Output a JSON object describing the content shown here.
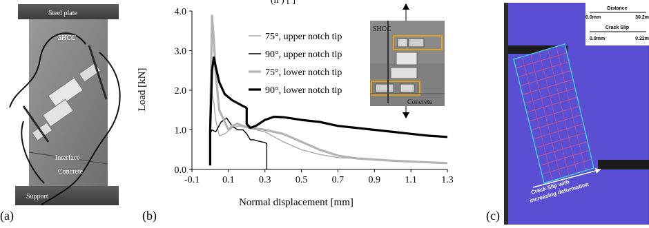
{
  "figure": {
    "labels": {
      "a": "(a)",
      "b": "(b)",
      "c": "(c)"
    }
  },
  "photo_a": {
    "labels": {
      "steel_plate": "Steel plate",
      "shcc": "SHCC",
      "interface": "Interface",
      "concrete": "Concrete",
      "support": "Support"
    }
  },
  "inset_b": {
    "labels": {
      "shcc": "SHCC",
      "concrete": "Concrete"
    }
  },
  "photo_c": {
    "scale": {
      "distance_title": "Distance",
      "distance_min": "0.0mm",
      "distance_max": "30.2m",
      "slip_title": "Crack Slip",
      "slip_min": "0.0mm",
      "slip_max": "0.22m"
    },
    "annotation": "Crack Slip with increasing deformation",
    "colors": {
      "background": "#5a4fd2",
      "crack_lines": "#e0507a",
      "crack_edge": "#40c8d8"
    }
  },
  "chart_data": {
    "type": "line",
    "title": "(h     ) [ ]",
    "xlabel": "Normal displacement [mm]",
    "ylabel": "Load [kN]",
    "xlim": [
      -0.1,
      1.3
    ],
    "ylim": [
      0.0,
      4.0
    ],
    "xticks": [
      "-0.1",
      "0.1",
      "0.3",
      "0.5",
      "0.7",
      "0.9",
      "1.1",
      "1.3"
    ],
    "yticks": [
      "0.0",
      "1.0",
      "2.0",
      "3.0",
      "4.0"
    ],
    "grid": false,
    "legend_position": "top-right",
    "series": [
      {
        "name": "75°, upper notch tip",
        "color": "#aaaaaa",
        "width": "thin",
        "x": [
          0.0,
          0.0,
          0.005,
          0.01,
          0.02,
          0.03,
          0.05,
          0.08,
          0.12,
          0.16,
          0.2,
          0.25,
          0.3,
          0.4,
          0.5,
          0.6,
          0.7,
          0.8
        ],
        "y": [
          1.0,
          1.55,
          3.3,
          1.9,
          1.7,
          1.25,
          0.85,
          0.9,
          1.05,
          1.1,
          1.05,
          1.0,
          0.95,
          0.7,
          0.5,
          0.38,
          0.3,
          0.28
        ]
      },
      {
        "name": "90°, upper notch tip",
        "color": "#000000",
        "width": "thin",
        "x": [
          0.0,
          0.005,
          0.01,
          0.03,
          0.06,
          0.09,
          0.12,
          0.15,
          0.18,
          0.2,
          0.22,
          0.24,
          0.26,
          0.28,
          0.3,
          0.31,
          0.31
        ],
        "y": [
          1.0,
          0.95,
          1.0,
          0.95,
          1.2,
          1.3,
          1.1,
          1.0,
          1.0,
          0.9,
          0.75,
          0.75,
          0.72,
          0.7,
          0.68,
          0.65,
          0.0
        ]
      },
      {
        "name": "75°, lower notch tip",
        "color": "#b3b3b3",
        "width": "thick",
        "x": [
          0.0,
          0.01,
          0.02,
          0.03,
          0.05,
          0.08,
          0.1,
          0.12,
          0.15,
          0.18,
          0.22,
          0.3,
          0.4,
          0.5,
          0.6,
          0.7,
          0.8,
          0.9,
          1.0,
          1.1,
          1.2,
          1.3
        ],
        "y": [
          1.2,
          3.88,
          3.3,
          2.4,
          1.5,
          1.2,
          1.0,
          1.1,
          1.15,
          1.1,
          1.05,
          1.0,
          0.9,
          0.7,
          0.5,
          0.35,
          0.28,
          0.25,
          0.22,
          0.2,
          0.18,
          0.16
        ]
      },
      {
        "name": "90°, lower notch tip",
        "color": "#000000",
        "width": "thick",
        "x": [
          0.0,
          0.0,
          0.01,
          0.02,
          0.03,
          0.05,
          0.08,
          0.12,
          0.16,
          0.18,
          0.19,
          0.2,
          0.2,
          0.22,
          0.25,
          0.3,
          0.35,
          0.4,
          0.5,
          0.6,
          0.7,
          0.8,
          0.9,
          1.0,
          1.1,
          1.2,
          1.3
        ],
        "y": [
          0.1,
          1.0,
          2.5,
          2.83,
          2.6,
          2.2,
          1.9,
          1.75,
          1.65,
          1.6,
          1.58,
          1.55,
          1.15,
          1.05,
          1.1,
          1.25,
          1.33,
          1.32,
          1.25,
          1.2,
          1.1,
          1.05,
          1.0,
          0.95,
          0.9,
          0.85,
          0.82
        ]
      }
    ]
  }
}
